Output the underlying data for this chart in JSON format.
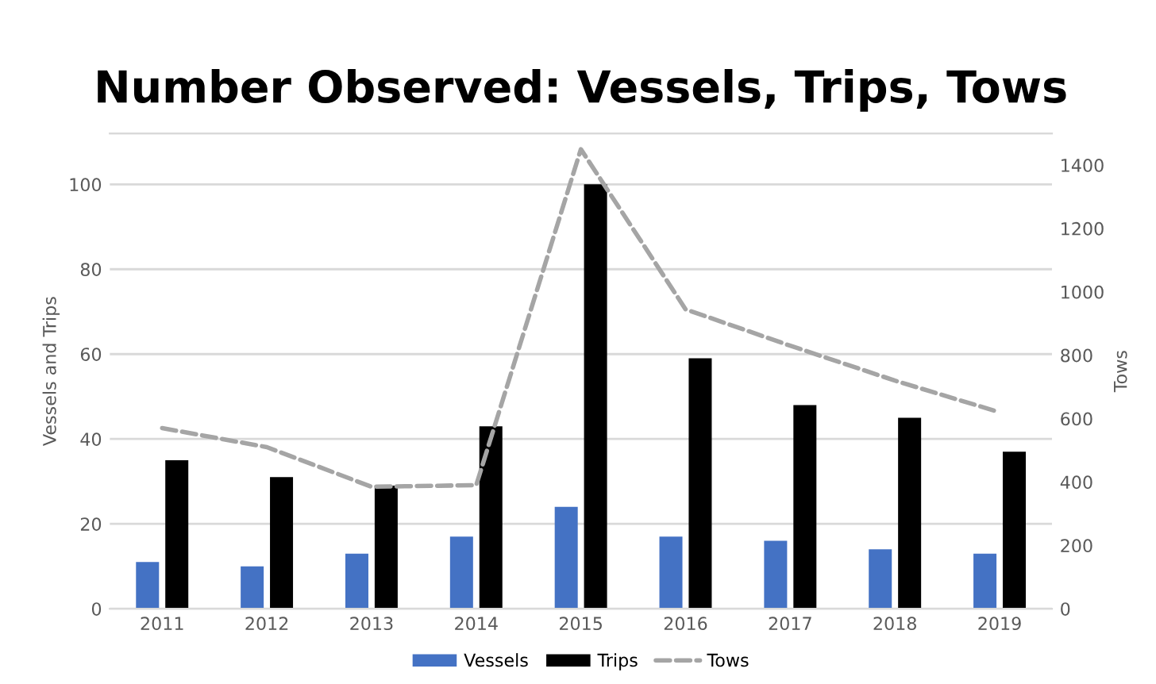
{
  "chart_data": {
    "type": "bar",
    "title": "Number Observed: Vessels, Trips, Tows",
    "ylabel": "Vessels and Trips",
    "y2label": "Tows",
    "categories": [
      "2011",
      "2012",
      "2013",
      "2014",
      "2015",
      "2016",
      "2017",
      "2018",
      "2019"
    ],
    "series": [
      {
        "name": "Vessels",
        "color": "#4472c4",
        "values": [
          11,
          10,
          13,
          17,
          24,
          17,
          16,
          14,
          13
        ]
      },
      {
        "name": "Trips",
        "color": "#000000",
        "values": [
          35,
          31,
          29,
          43,
          100,
          59,
          48,
          45,
          37
        ]
      },
      {
        "name": "Tows",
        "type": "line",
        "axis": "y2",
        "color": "#a5a5a5",
        "line_style": "dashed",
        "values": [
          570,
          510,
          385,
          390,
          1450,
          945,
          830,
          720,
          620
        ]
      }
    ],
    "ylim": [
      0,
      112
    ],
    "yticks": [
      0,
      20,
      40,
      60,
      80,
      100
    ],
    "y2lim": [
      0,
      1500
    ],
    "y2ticks": [
      0,
      200,
      400,
      600,
      800,
      1000,
      1200,
      1400
    ],
    "grid": "y",
    "legend": "bottom",
    "marker": "none"
  }
}
